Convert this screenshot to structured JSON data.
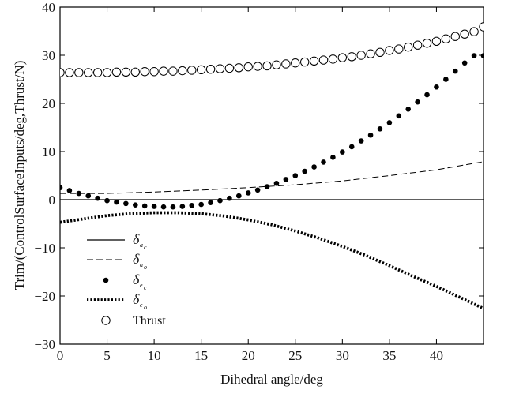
{
  "chart_data": {
    "type": "line",
    "title": "",
    "xlabel": "Dihedral angle/deg",
    "ylabel": "Trim/(ControlSurfaceInputs/deg,Thrust/N)",
    "xlim": [
      0,
      45
    ],
    "ylim": [
      -30,
      40
    ],
    "x_ticks": [
      0,
      5,
      10,
      15,
      20,
      25,
      30,
      35,
      40
    ],
    "y_ticks": [
      -30,
      -20,
      -10,
      0,
      10,
      20,
      30,
      40
    ],
    "x_tick_labels": [
      "0",
      "5",
      "10",
      "15",
      "20",
      "25",
      "30",
      "35",
      "40"
    ],
    "y_tick_labels": [
      "−30",
      "−20",
      "−10",
      "0",
      "10",
      "20",
      "30",
      "40"
    ],
    "grid": false,
    "legend_placement": "bottom-left",
    "series": [
      {
        "name": "δ",
        "legend_sub": "a",
        "legend_subsub": "c",
        "style": "solid-line",
        "color": "#000000",
        "x": [
          0,
          45
        ],
        "y": [
          0,
          0
        ]
      },
      {
        "name": "δ",
        "legend_sub": "a",
        "legend_subsub": "o",
        "style": "dashed-line",
        "color": "#000000",
        "x": [
          0,
          5,
          10,
          15,
          20,
          25,
          30,
          35,
          40,
          45
        ],
        "y": [
          1.3,
          1.3,
          1.6,
          2.0,
          2.5,
          3.1,
          3.9,
          5.0,
          6.2,
          7.9
        ]
      },
      {
        "name": "δ",
        "legend_sub": "e",
        "legend_subsub": "c",
        "style": "filled-dots",
        "color": "#000000",
        "x": [
          0,
          1,
          2,
          3,
          4,
          5,
          6,
          7,
          8,
          9,
          10,
          11,
          12,
          13,
          14,
          15,
          16,
          17,
          18,
          19,
          20,
          21,
          22,
          23,
          24,
          25,
          26,
          27,
          28,
          29,
          30,
          31,
          32,
          33,
          34,
          35,
          36,
          37,
          38,
          39,
          40,
          41,
          42,
          43,
          44,
          45
        ],
        "y": [
          2.5,
          1.9,
          1.3,
          0.8,
          0.3,
          -0.2,
          -0.5,
          -0.8,
          -1.1,
          -1.3,
          -1.4,
          -1.5,
          -1.5,
          -1.4,
          -1.2,
          -1.0,
          -0.6,
          -0.2,
          0.3,
          0.8,
          1.4,
          2.0,
          2.7,
          3.4,
          4.2,
          5.0,
          5.9,
          6.8,
          7.8,
          8.8,
          9.9,
          11.0,
          12.2,
          13.4,
          14.7,
          16.0,
          17.4,
          18.8,
          20.3,
          21.8,
          23.4,
          25.0,
          26.7,
          28.4,
          29.9,
          29.9
        ]
      },
      {
        "name": "δ",
        "legend_sub": "e",
        "legend_subsub": "o",
        "style": "thick-dotted-line",
        "color": "#000000",
        "x": [
          0,
          2.5,
          5,
          7.5,
          10,
          12.5,
          15,
          17.5,
          20,
          22.5,
          25,
          27.5,
          30,
          32.5,
          35,
          37.5,
          40,
          42.5,
          45
        ],
        "y": [
          -4.7,
          -4.0,
          -3.3,
          -2.9,
          -2.7,
          -2.7,
          -2.9,
          -3.4,
          -4.2,
          -5.2,
          -6.5,
          -8.0,
          -9.7,
          -11.6,
          -13.7,
          -15.9,
          -18.0,
          -20.3,
          -22.6
        ]
      },
      {
        "name": "Thrust",
        "style": "open-circles",
        "color": "#000000",
        "x": [
          0,
          1,
          2,
          3,
          4,
          5,
          6,
          7,
          8,
          9,
          10,
          11,
          12,
          13,
          14,
          15,
          16,
          17,
          18,
          19,
          20,
          21,
          22,
          23,
          24,
          25,
          26,
          27,
          28,
          29,
          30,
          31,
          32,
          33,
          34,
          35,
          36,
          37,
          38,
          39,
          40,
          41,
          42,
          43,
          44,
          45
        ],
        "y": [
          26.4,
          26.4,
          26.4,
          26.4,
          26.4,
          26.4,
          26.5,
          26.5,
          26.5,
          26.6,
          26.6,
          26.7,
          26.7,
          26.8,
          26.9,
          27.0,
          27.1,
          27.2,
          27.3,
          27.4,
          27.6,
          27.7,
          27.8,
          28.0,
          28.2,
          28.4,
          28.6,
          28.8,
          29.0,
          29.2,
          29.5,
          29.7,
          30.0,
          30.3,
          30.6,
          31.0,
          31.3,
          31.7,
          32.1,
          32.5,
          32.9,
          33.4,
          33.9,
          34.4,
          34.9,
          35.9
        ]
      }
    ]
  }
}
